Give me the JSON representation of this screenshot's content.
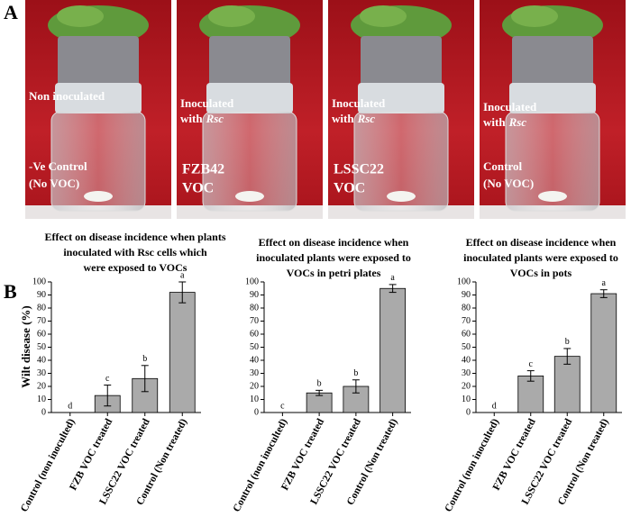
{
  "panels": {
    "a": "A",
    "b": "B"
  },
  "photos": [
    {
      "top": [
        "Non inoculated"
      ],
      "bottom": [
        "-Ve Control",
        "(No VOC)"
      ]
    },
    {
      "top": [
        "Inoculated",
        [
          "with",
          "Rsc"
        ]
      ],
      "bottom": [
        "FZB42",
        "VOC"
      ]
    },
    {
      "top": [
        "Inoculated",
        [
          "with",
          "Rsc"
        ]
      ],
      "bottom": [
        "LSSC22",
        "VOC"
      ]
    },
    {
      "top": [
        "Inoculated",
        [
          "with",
          "Rsc"
        ]
      ],
      "bottom": [
        "Control",
        "(No VOC)"
      ]
    }
  ],
  "y_label": "Wilt disease (%)",
  "chart_data": [
    {
      "type": "bar",
      "title": [
        "Effect on disease incidence when plants",
        "inoculated with Rsc cells which",
        "were exposed to VOCs"
      ],
      "categories": [
        "Control (non inoculted)",
        "FZB VOC treated",
        "LSSC22 VOC treated",
        "Control (Non treated)"
      ],
      "values": [
        0,
        13,
        26,
        92
      ],
      "errors": [
        0,
        8,
        10,
        8
      ],
      "significance": [
        "d",
        "c",
        "b",
        "a"
      ],
      "color": "#aaaaaa",
      "ylim": [
        0,
        100
      ],
      "yticks": [
        0,
        10,
        20,
        30,
        40,
        50,
        60,
        70,
        80,
        90,
        100
      ]
    },
    {
      "type": "bar",
      "title": [
        "Effect on disease incidence when",
        "inoculated plants were exposed to",
        "VOCs in petri plates"
      ],
      "categories": [
        "Control (non inoculted)",
        "FZB VOC treated",
        "LSSC22 VOC treated",
        "Control (Non treated)"
      ],
      "values": [
        0,
        15,
        20,
        95
      ],
      "errors": [
        0,
        2,
        5,
        3
      ],
      "significance": [
        "c",
        "b",
        "b",
        "a"
      ],
      "color": "#aaaaaa",
      "ylim": [
        0,
        100
      ],
      "yticks": [
        0,
        10,
        20,
        30,
        40,
        50,
        60,
        70,
        80,
        90,
        100
      ]
    },
    {
      "type": "bar",
      "title": [
        "Effect on disease incidence when",
        "inoculated plants were exposed to",
        "VOCs in pots"
      ],
      "categories": [
        "Control (non inoculted)",
        "FZB VOC treated",
        "LSSC22 VOC treated",
        "Control (Non treated)"
      ],
      "values": [
        0,
        28,
        43,
        91
      ],
      "errors": [
        0,
        4,
        6,
        3
      ],
      "significance": [
        "d",
        "c",
        "b",
        "a"
      ],
      "color": "#aaaaaa",
      "ylim": [
        0,
        100
      ],
      "yticks": [
        0,
        10,
        20,
        30,
        40,
        50,
        60,
        70,
        80,
        90,
        100
      ]
    }
  ]
}
